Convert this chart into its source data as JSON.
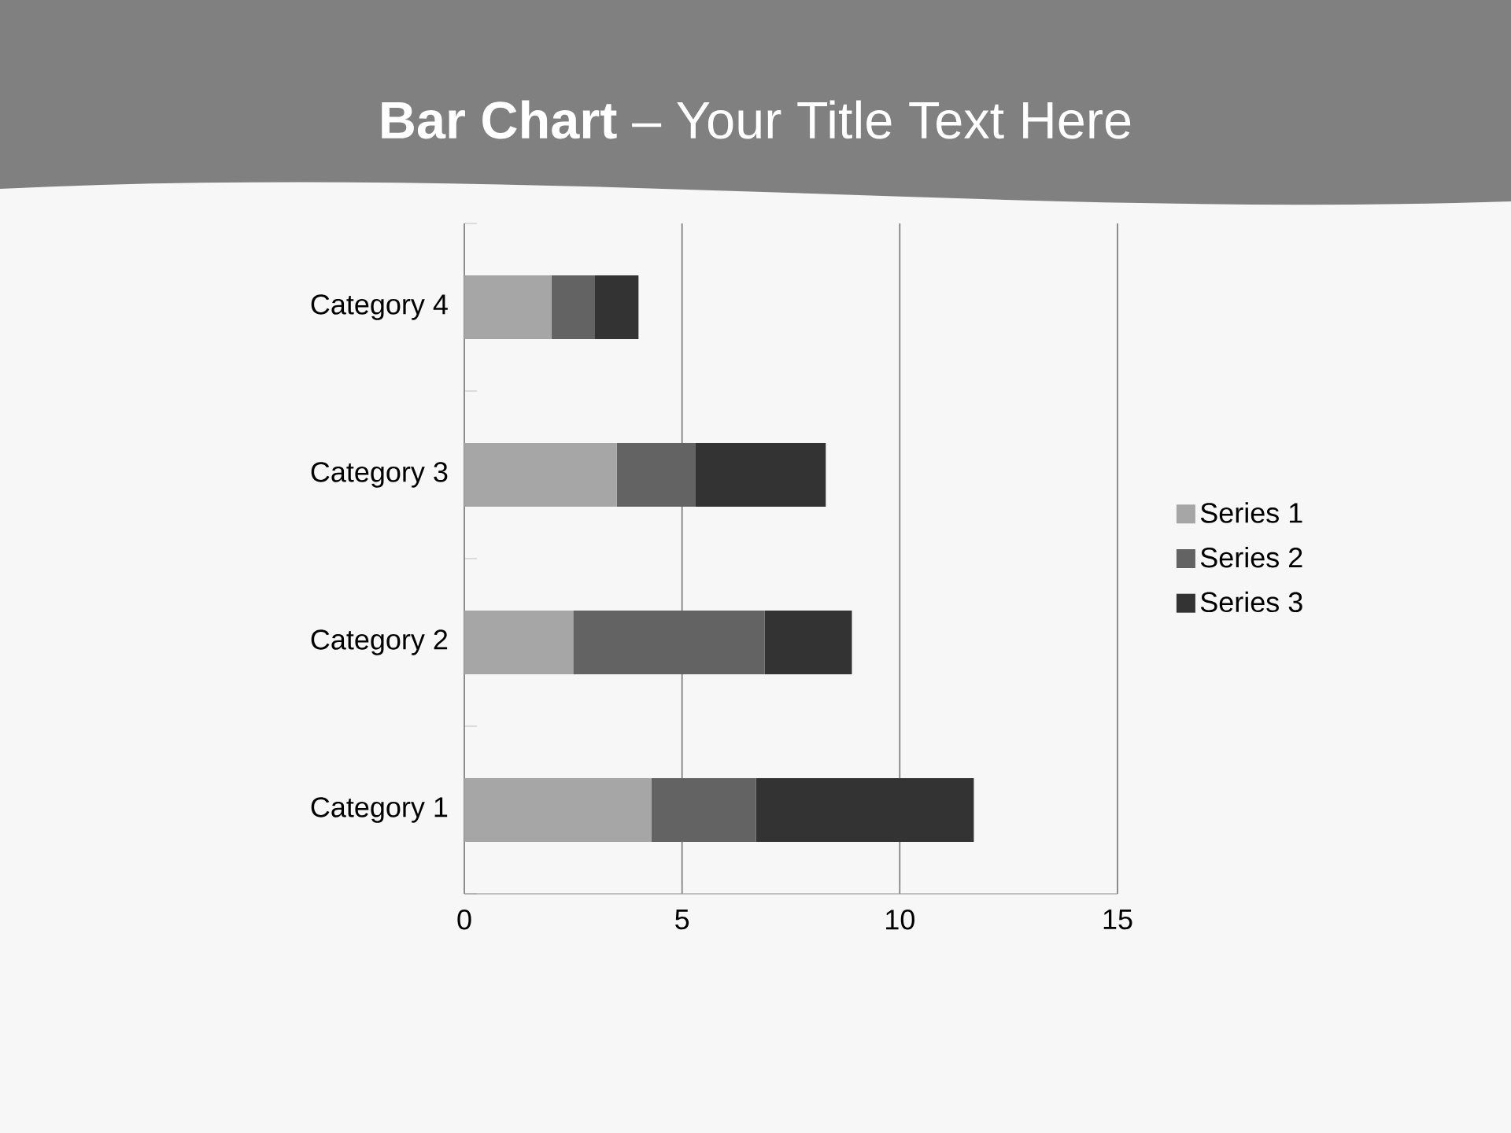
{
  "chart_data": {
    "type": "bar",
    "orientation": "horizontal",
    "stacked": true,
    "title": "**Bar Chart** – Your Title Text Here",
    "categories": [
      "Category 4",
      "Category 3",
      "Category 2",
      "Category 1"
    ],
    "series": [
      {
        "name": "Series 1",
        "color": "#a6a6a6",
        "values": [
          2.0,
          3.5,
          2.5,
          4.3
        ]
      },
      {
        "name": "Series 2",
        "color": "#636363",
        "values": [
          1.0,
          1.8,
          4.4,
          2.4
        ]
      },
      {
        "name": "Series 3",
        "color": "#333333",
        "values": [
          1.0,
          3.0,
          2.0,
          5.0
        ]
      }
    ],
    "xlim": [
      0,
      15
    ],
    "xticks": [
      0,
      5,
      10,
      15
    ],
    "grid": "x",
    "legend": "right"
  }
}
